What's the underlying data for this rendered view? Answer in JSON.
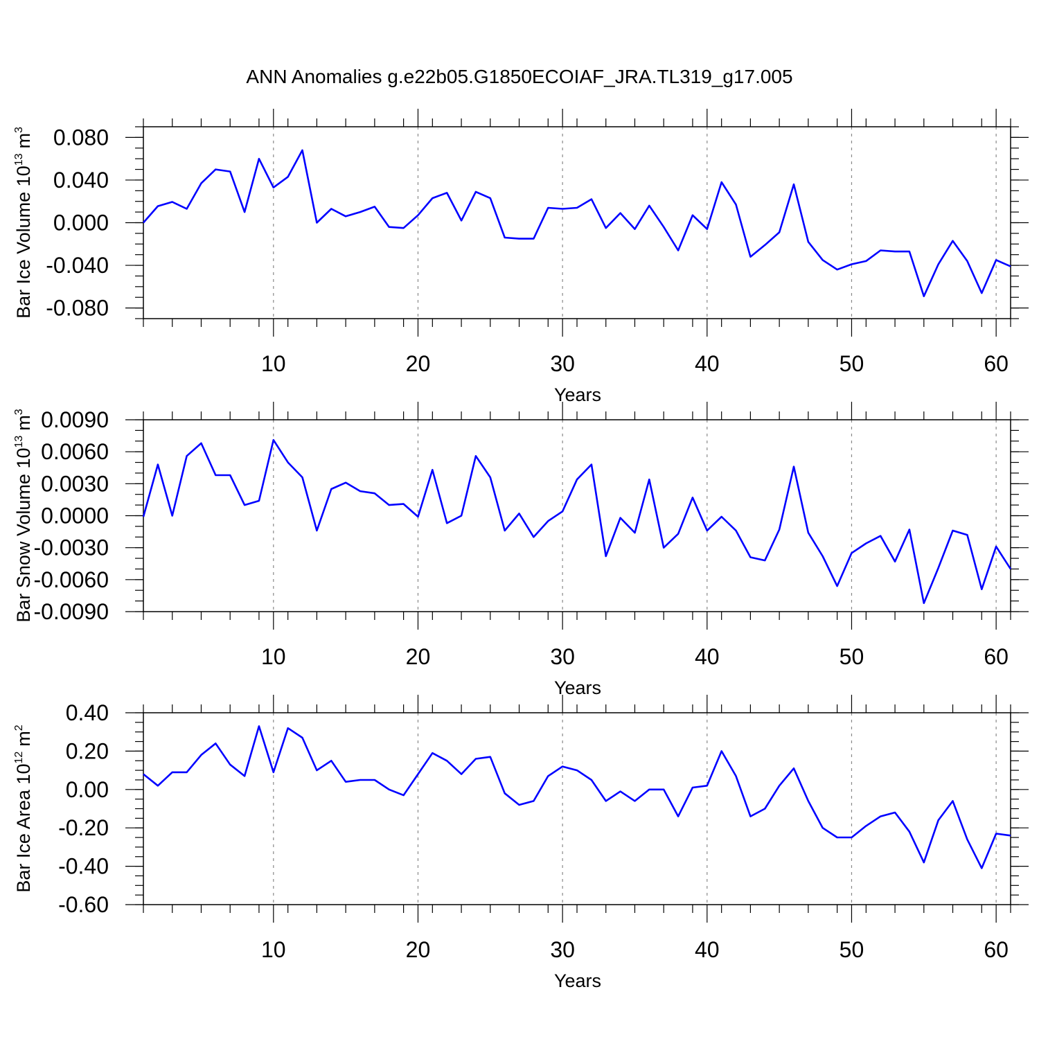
{
  "title": "ANN Anomalies g.e22b05.G1850ECOIAF_JRA.TL319_g17.005",
  "colors": {
    "line": "#0000ff",
    "grid": "#888888",
    "axis": "#000000"
  },
  "chart_data": [
    {
      "type": "line",
      "ylabel_main": "Bar Ice Volume 10",
      "ylabel_exp": "13",
      "ylabel_unit": "m",
      "ylabel_unit_exp": "3",
      "xlabel": "Years",
      "xlim": [
        1,
        61
      ],
      "ylim": [
        -0.09,
        0.09
      ],
      "y_ticks": [
        -0.08,
        -0.04,
        0.0,
        0.04,
        0.08
      ],
      "y_tick_labels": [
        "-0.080",
        "-0.040",
        "0.000",
        "0.040",
        "0.080"
      ],
      "y_minor_step": 0.01,
      "x_ticks": [
        10,
        20,
        30,
        40,
        50,
        60
      ],
      "x_tick_labels": [
        "10",
        "20",
        "30",
        "40",
        "50",
        "60"
      ],
      "x_grid": [
        10,
        20,
        30,
        40,
        50,
        60
      ],
      "x": [
        1,
        2,
        3,
        4,
        5,
        6,
        7,
        8,
        9,
        10,
        11,
        12,
        13,
        14,
        15,
        16,
        17,
        18,
        19,
        20,
        21,
        22,
        23,
        24,
        25,
        26,
        27,
        28,
        29,
        30,
        31,
        32,
        33,
        34,
        35,
        36,
        37,
        38,
        39,
        40,
        41,
        42,
        43,
        44,
        45,
        46,
        47,
        48,
        49,
        50,
        51,
        52,
        53,
        54,
        55,
        56,
        57,
        58,
        59,
        60,
        61
      ],
      "series": [
        {
          "values": [
            0.0,
            0.0155,
            0.0195,
            0.013,
            0.037,
            0.05,
            0.048,
            0.01,
            0.06,
            0.033,
            0.043,
            0.068,
            0.0,
            0.013,
            0.006,
            0.01,
            0.015,
            -0.004,
            -0.005,
            0.007,
            0.023,
            0.028,
            0.002,
            0.029,
            0.023,
            -0.014,
            -0.015,
            -0.015,
            0.014,
            0.013,
            0.014,
            0.022,
            -0.005,
            0.009,
            -0.006,
            0.016,
            -0.004,
            -0.026,
            0.007,
            -0.006,
            0.038,
            0.017,
            -0.032,
            -0.021,
            -0.009,
            0.036,
            -0.018,
            -0.035,
            -0.044,
            -0.039,
            -0.036,
            -0.026,
            -0.027,
            -0.027,
            -0.069,
            -0.039,
            -0.017,
            -0.036,
            -0.066,
            -0.035,
            -0.041
          ]
        }
      ]
    },
    {
      "type": "line",
      "ylabel_main": "Bar Snow Volume 10",
      "ylabel_exp": "13",
      "ylabel_unit": "m",
      "ylabel_unit_exp": "3",
      "xlabel": "Years",
      "xlim": [
        1,
        61
      ],
      "ylim": [
        -0.009,
        0.009
      ],
      "y_ticks": [
        -0.009,
        -0.006,
        -0.003,
        0.0,
        0.003,
        0.006,
        0.009
      ],
      "y_tick_labels": [
        "-0.0090",
        "-0.0060",
        "-0.0030",
        "0.0000",
        "0.0030",
        "0.0060",
        "0.0090"
      ],
      "y_minor_step": 0.001,
      "x_ticks": [
        10,
        20,
        30,
        40,
        50,
        60
      ],
      "x_tick_labels": [
        "10",
        "20",
        "30",
        "40",
        "50",
        "60"
      ],
      "x_grid": [
        10,
        20,
        30,
        40,
        50,
        60
      ],
      "x": [
        1,
        2,
        3,
        4,
        5,
        6,
        7,
        8,
        9,
        10,
        11,
        12,
        13,
        14,
        15,
        16,
        17,
        18,
        19,
        20,
        21,
        22,
        23,
        24,
        25,
        26,
        27,
        28,
        29,
        30,
        31,
        32,
        33,
        34,
        35,
        36,
        37,
        38,
        39,
        40,
        41,
        42,
        43,
        44,
        45,
        46,
        47,
        48,
        49,
        50,
        51,
        52,
        53,
        54,
        55,
        56,
        57,
        58,
        59,
        60,
        61
      ],
      "series": [
        {
          "values": [
            -0.0001,
            0.0048,
            0.0,
            0.0056,
            0.0068,
            0.0038,
            0.0038,
            0.001,
            0.0014,
            0.0071,
            0.005,
            0.0036,
            -0.0014,
            0.0025,
            0.0031,
            0.0023,
            0.0021,
            0.001,
            0.0011,
            -0.0001,
            0.0043,
            -0.0007,
            0.0,
            0.0056,
            0.0036,
            -0.0014,
            0.0002,
            -0.002,
            -0.0005,
            0.0004,
            0.0034,
            0.0048,
            -0.0038,
            -0.0002,
            -0.0016,
            0.0034,
            -0.003,
            -0.0017,
            0.0017,
            -0.0014,
            -0.0001,
            -0.0014,
            -0.0039,
            -0.0042,
            -0.0013,
            0.0046,
            -0.0016,
            -0.0038,
            -0.0066,
            -0.0035,
            -0.0026,
            -0.0019,
            -0.0043,
            -0.0013,
            -0.0082,
            -0.0049,
            -0.0014,
            -0.0018,
            -0.0069,
            -0.0029,
            -0.005
          ]
        }
      ]
    },
    {
      "type": "line",
      "ylabel_main": "Bar Ice Area 10",
      "ylabel_exp": "12",
      "ylabel_unit": "m",
      "ylabel_unit_exp": "2",
      "xlabel": "Years",
      "xlim": [
        1,
        61
      ],
      "ylim": [
        -0.6,
        0.4
      ],
      "y_ticks": [
        -0.6,
        -0.4,
        -0.2,
        0.0,
        0.2,
        0.4
      ],
      "y_tick_labels": [
        "-0.60",
        "-0.40",
        "-0.20",
        "0.00",
        "0.20",
        "0.40"
      ],
      "y_minor_step": 0.05,
      "x_ticks": [
        10,
        20,
        30,
        40,
        50,
        60
      ],
      "x_tick_labels": [
        "10",
        "20",
        "30",
        "40",
        "50",
        "60"
      ],
      "x_grid": [
        10,
        20,
        30,
        40,
        50,
        60
      ],
      "x": [
        1,
        2,
        3,
        4,
        5,
        6,
        7,
        8,
        9,
        10,
        11,
        12,
        13,
        14,
        15,
        16,
        17,
        18,
        19,
        20,
        21,
        22,
        23,
        24,
        25,
        26,
        27,
        28,
        29,
        30,
        31,
        32,
        33,
        34,
        35,
        36,
        37,
        38,
        39,
        40,
        41,
        42,
        43,
        44,
        45,
        46,
        47,
        48,
        49,
        50,
        51,
        52,
        53,
        54,
        55,
        56,
        57,
        58,
        59,
        60,
        61
      ],
      "series": [
        {
          "values": [
            0.08,
            0.02,
            0.09,
            0.09,
            0.18,
            0.24,
            0.13,
            0.07,
            0.33,
            0.09,
            0.32,
            0.27,
            0.1,
            0.15,
            0.04,
            0.05,
            0.05,
            0.0,
            -0.03,
            0.08,
            0.19,
            0.15,
            0.08,
            0.16,
            0.17,
            -0.02,
            -0.08,
            -0.06,
            0.07,
            0.12,
            0.1,
            0.05,
            -0.06,
            -0.01,
            -0.06,
            0.0,
            0.0,
            -0.14,
            0.01,
            0.02,
            0.2,
            0.07,
            -0.14,
            -0.1,
            0.02,
            0.11,
            -0.06,
            -0.2,
            -0.25,
            -0.25,
            -0.19,
            -0.14,
            -0.12,
            -0.22,
            -0.38,
            -0.16,
            -0.06,
            -0.26,
            -0.41,
            -0.23,
            -0.24
          ]
        }
      ]
    }
  ]
}
